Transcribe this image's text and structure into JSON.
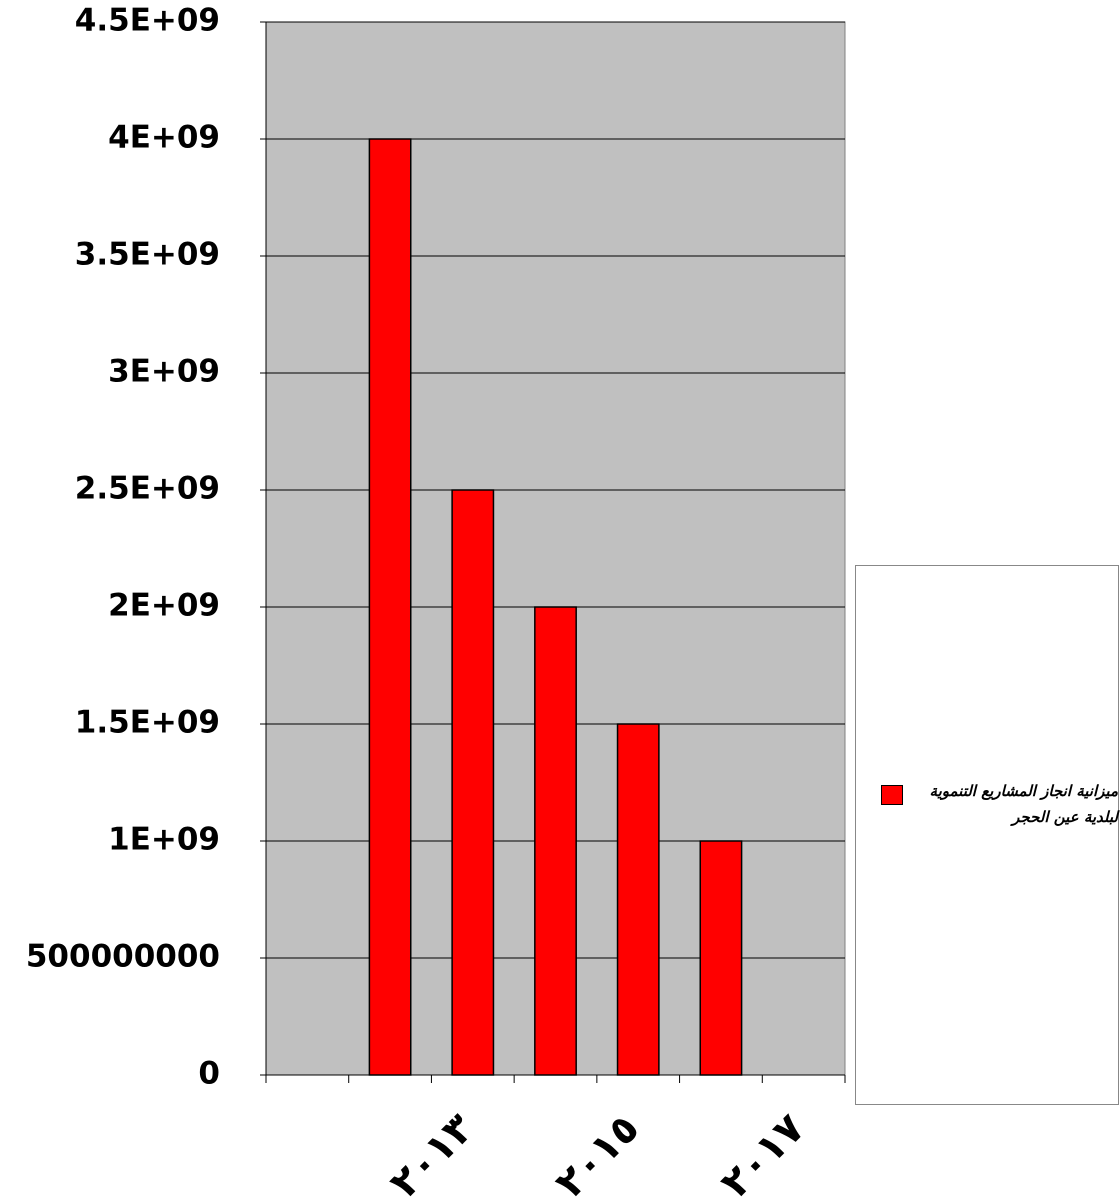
{
  "chart_data": {
    "type": "bar",
    "categories": [
      null,
      "٢٠١٣",
      null,
      "٢٠١٥",
      null,
      "٢٠١٧",
      null
    ],
    "series": [
      {
        "name": "ميزانية انجاز المشاريع التنموية لبلدية عين الحجر",
        "color": "#ff0000",
        "values": [
          null,
          4000000000,
          2500000000,
          2000000000,
          1500000000,
          1000000000,
          null
        ]
      }
    ],
    "ylim": [
      0,
      4500000000
    ],
    "yticks": [
      0,
      500000000,
      {
        "value": 1000000000,
        "label": "1E+09"
      },
      {
        "value": 1500000000,
        "label": "1.5E+09"
      },
      {
        "value": 2000000000,
        "label": "2E+09"
      },
      {
        "value": 2500000000,
        "label": "2.5E+09"
      },
      {
        "value": 3000000000,
        "label": "3E+09"
      },
      {
        "value": 3500000000,
        "label": "3.5E+09"
      },
      {
        "value": 4000000000,
        "label": "4E+09"
      },
      {
        "value": 4500000000,
        "label": "4.5E+09"
      }
    ],
    "grid": true,
    "legend": "right"
  }
}
